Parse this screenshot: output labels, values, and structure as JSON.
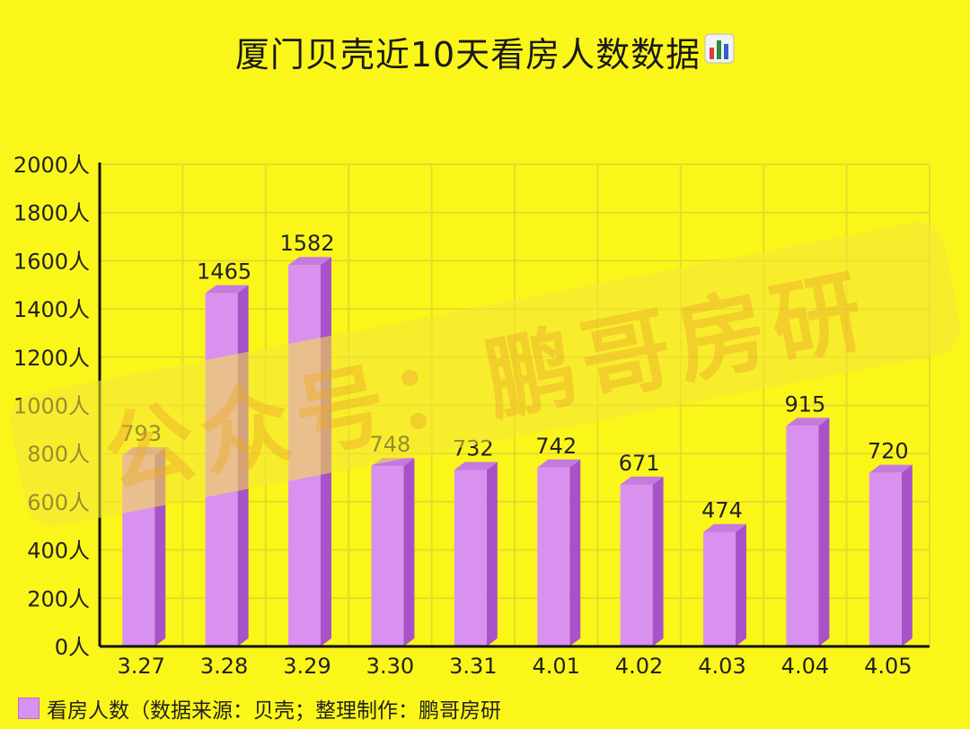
{
  "title": "厦门贝壳近10天看房人数数据",
  "title_icon": "bar-chart-emoji-icon",
  "legend_label": "看房人数（数据来源：贝壳；整理制作：鹏哥房研",
  "watermark_text": "公众号：鹏哥房研",
  "colors": {
    "background": "#fbf619",
    "bar_front": "#d991f0",
    "bar_side": "#a752c9",
    "bar_top": "#c47ae0",
    "grid": "#e4dc2a"
  },
  "chart_data": {
    "type": "bar",
    "categories": [
      "3.27",
      "3.28",
      "3.29",
      "3.30",
      "3.31",
      "4.01",
      "4.02",
      "4.03",
      "4.04",
      "4.05"
    ],
    "series": [
      {
        "name": "看房人数",
        "values": [
          793,
          1465,
          1582,
          748,
          732,
          742,
          671,
          474,
          915,
          720
        ]
      }
    ],
    "data_labels": [
      "793",
      "1465",
      "1582",
      "748",
      "732",
      "742",
      "671",
      "474",
      "915",
      "720"
    ],
    "ylim": [
      0,
      2000
    ],
    "yticks": [
      0,
      200,
      400,
      600,
      800,
      1000,
      1200,
      1400,
      1600,
      1800,
      2000
    ],
    "ytick_labels": [
      "0人",
      "200人",
      "400人",
      "600人",
      "800人",
      "1000人",
      "1200人",
      "1400人",
      "1600人",
      "1800人",
      "2000人"
    ],
    "grid": true,
    "legend_position": "bottom-left",
    "style": "3d-bar"
  }
}
